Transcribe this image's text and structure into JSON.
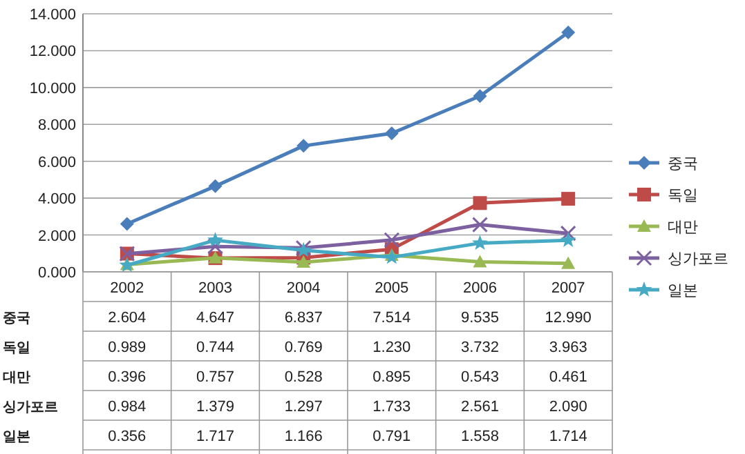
{
  "chart_data": {
    "type": "line",
    "categories": [
      "2002",
      "2003",
      "2004",
      "2005",
      "2006",
      "2007"
    ],
    "series": [
      {
        "name": "중국",
        "color": "#4a7ebb",
        "marker": "diamond",
        "values": [
          2.604,
          4.647,
          6.837,
          7.514,
          9.535,
          12.99
        ],
        "value_labels": [
          "2.604",
          "4.647",
          "6.837",
          "7.514",
          "9.535",
          "12.990"
        ]
      },
      {
        "name": "독일",
        "color": "#be4b48",
        "marker": "square",
        "values": [
          0.989,
          0.744,
          0.769,
          1.23,
          3.732,
          3.963
        ],
        "value_labels": [
          "0.989",
          "0.744",
          "0.769",
          "1.230",
          "3.732",
          "3.963"
        ]
      },
      {
        "name": "대만",
        "color": "#98b954",
        "marker": "triangle",
        "values": [
          0.396,
          0.757,
          0.528,
          0.895,
          0.543,
          0.461
        ],
        "value_labels": [
          "0.396",
          "0.757",
          "0.528",
          "0.895",
          "0.543",
          "0.461"
        ]
      },
      {
        "name": "싱가포르",
        "color": "#7d60a0",
        "marker": "cross",
        "values": [
          0.984,
          1.379,
          1.297,
          1.733,
          2.561,
          2.09
        ],
        "value_labels": [
          "0.984",
          "1.379",
          "1.297",
          "1.733",
          "2.561",
          "2.090"
        ]
      },
      {
        "name": "일본",
        "color": "#46aac5",
        "marker": "star",
        "values": [
          0.356,
          1.717,
          1.166,
          0.791,
          1.558,
          1.714
        ],
        "value_labels": [
          "0.356",
          "1.717",
          "1.166",
          "0.791",
          "1.558",
          "1.714"
        ]
      }
    ],
    "ylim": [
      0,
      14
    ],
    "yticks": [
      {
        "value": 0,
        "label": "0.000"
      },
      {
        "value": 2,
        "label": "2.000"
      },
      {
        "value": 4,
        "label": "4.000"
      },
      {
        "value": 6,
        "label": "6.000"
      },
      {
        "value": 8,
        "label": "8.000"
      },
      {
        "value": 10,
        "label": "10.000"
      },
      {
        "value": 12,
        "label": "12.000"
      },
      {
        "value": 14,
        "label": "14.000"
      }
    ],
    "grid": "y",
    "legend": "right",
    "line_style": "solid"
  }
}
